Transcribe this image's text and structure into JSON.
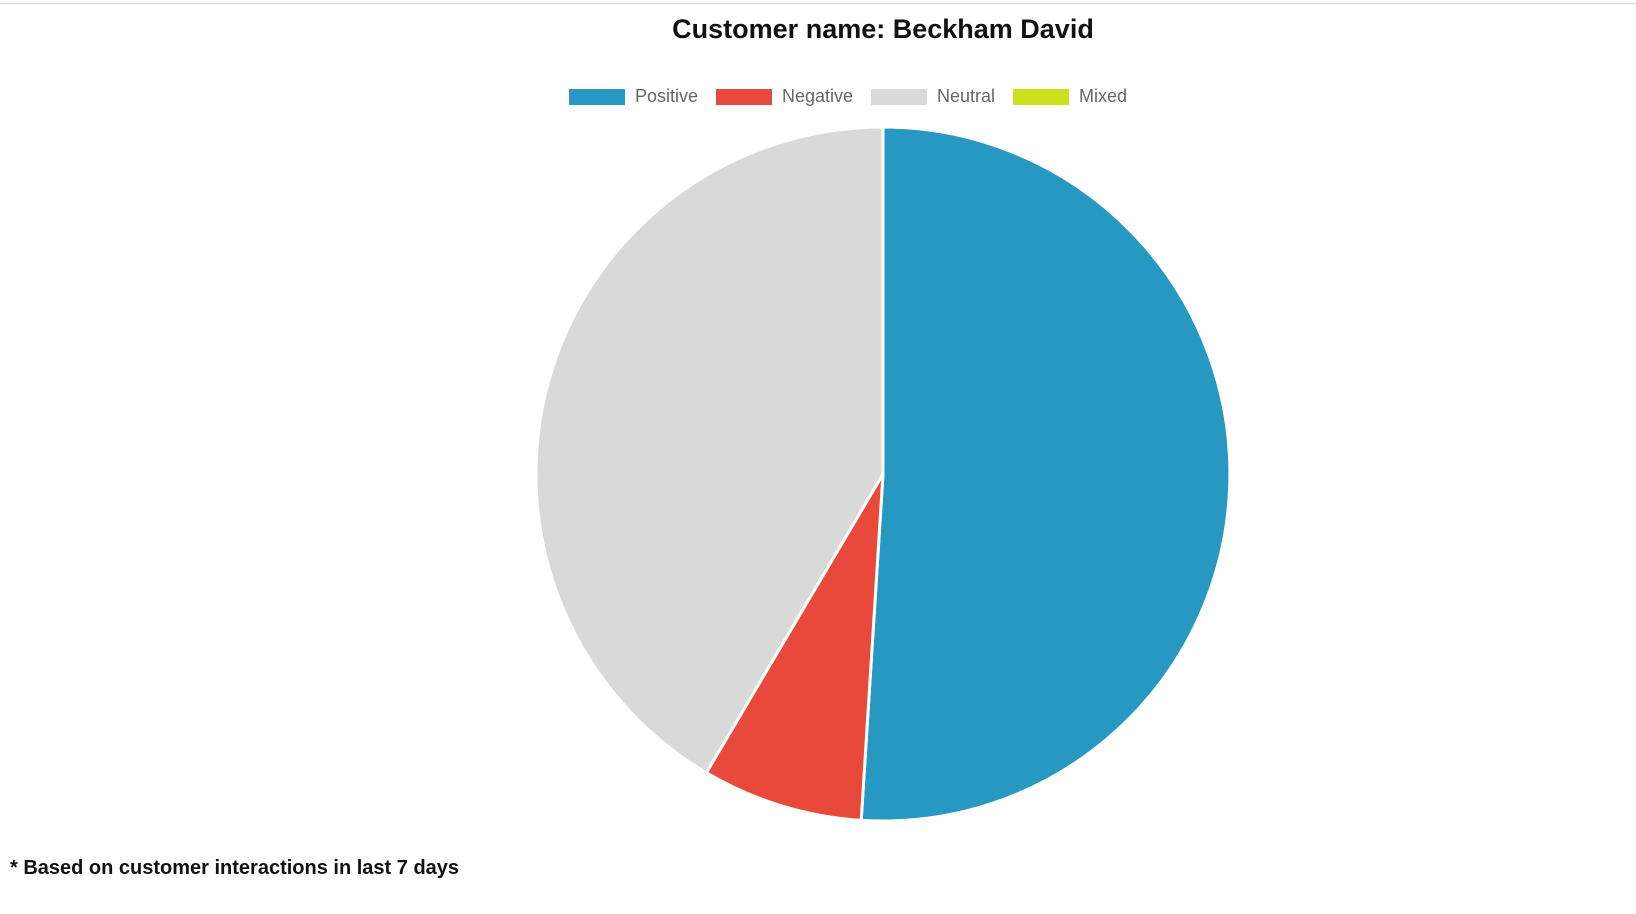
{
  "chart_data": {
    "type": "pie",
    "title": "Customer name: Beckham David",
    "legend_position": "top",
    "slices": [
      {
        "label": "Positive",
        "value": 51,
        "color": "#2698c1"
      },
      {
        "label": "Negative",
        "value": 7.5,
        "color": "#e9493b"
      },
      {
        "label": "Neutral",
        "value": 41.5,
        "color": "#d9d9d9"
      },
      {
        "label": "Mixed",
        "value": 0,
        "color": "#c9e21c"
      }
    ]
  },
  "footnote": "* Based on customer interactions in last 7 days"
}
